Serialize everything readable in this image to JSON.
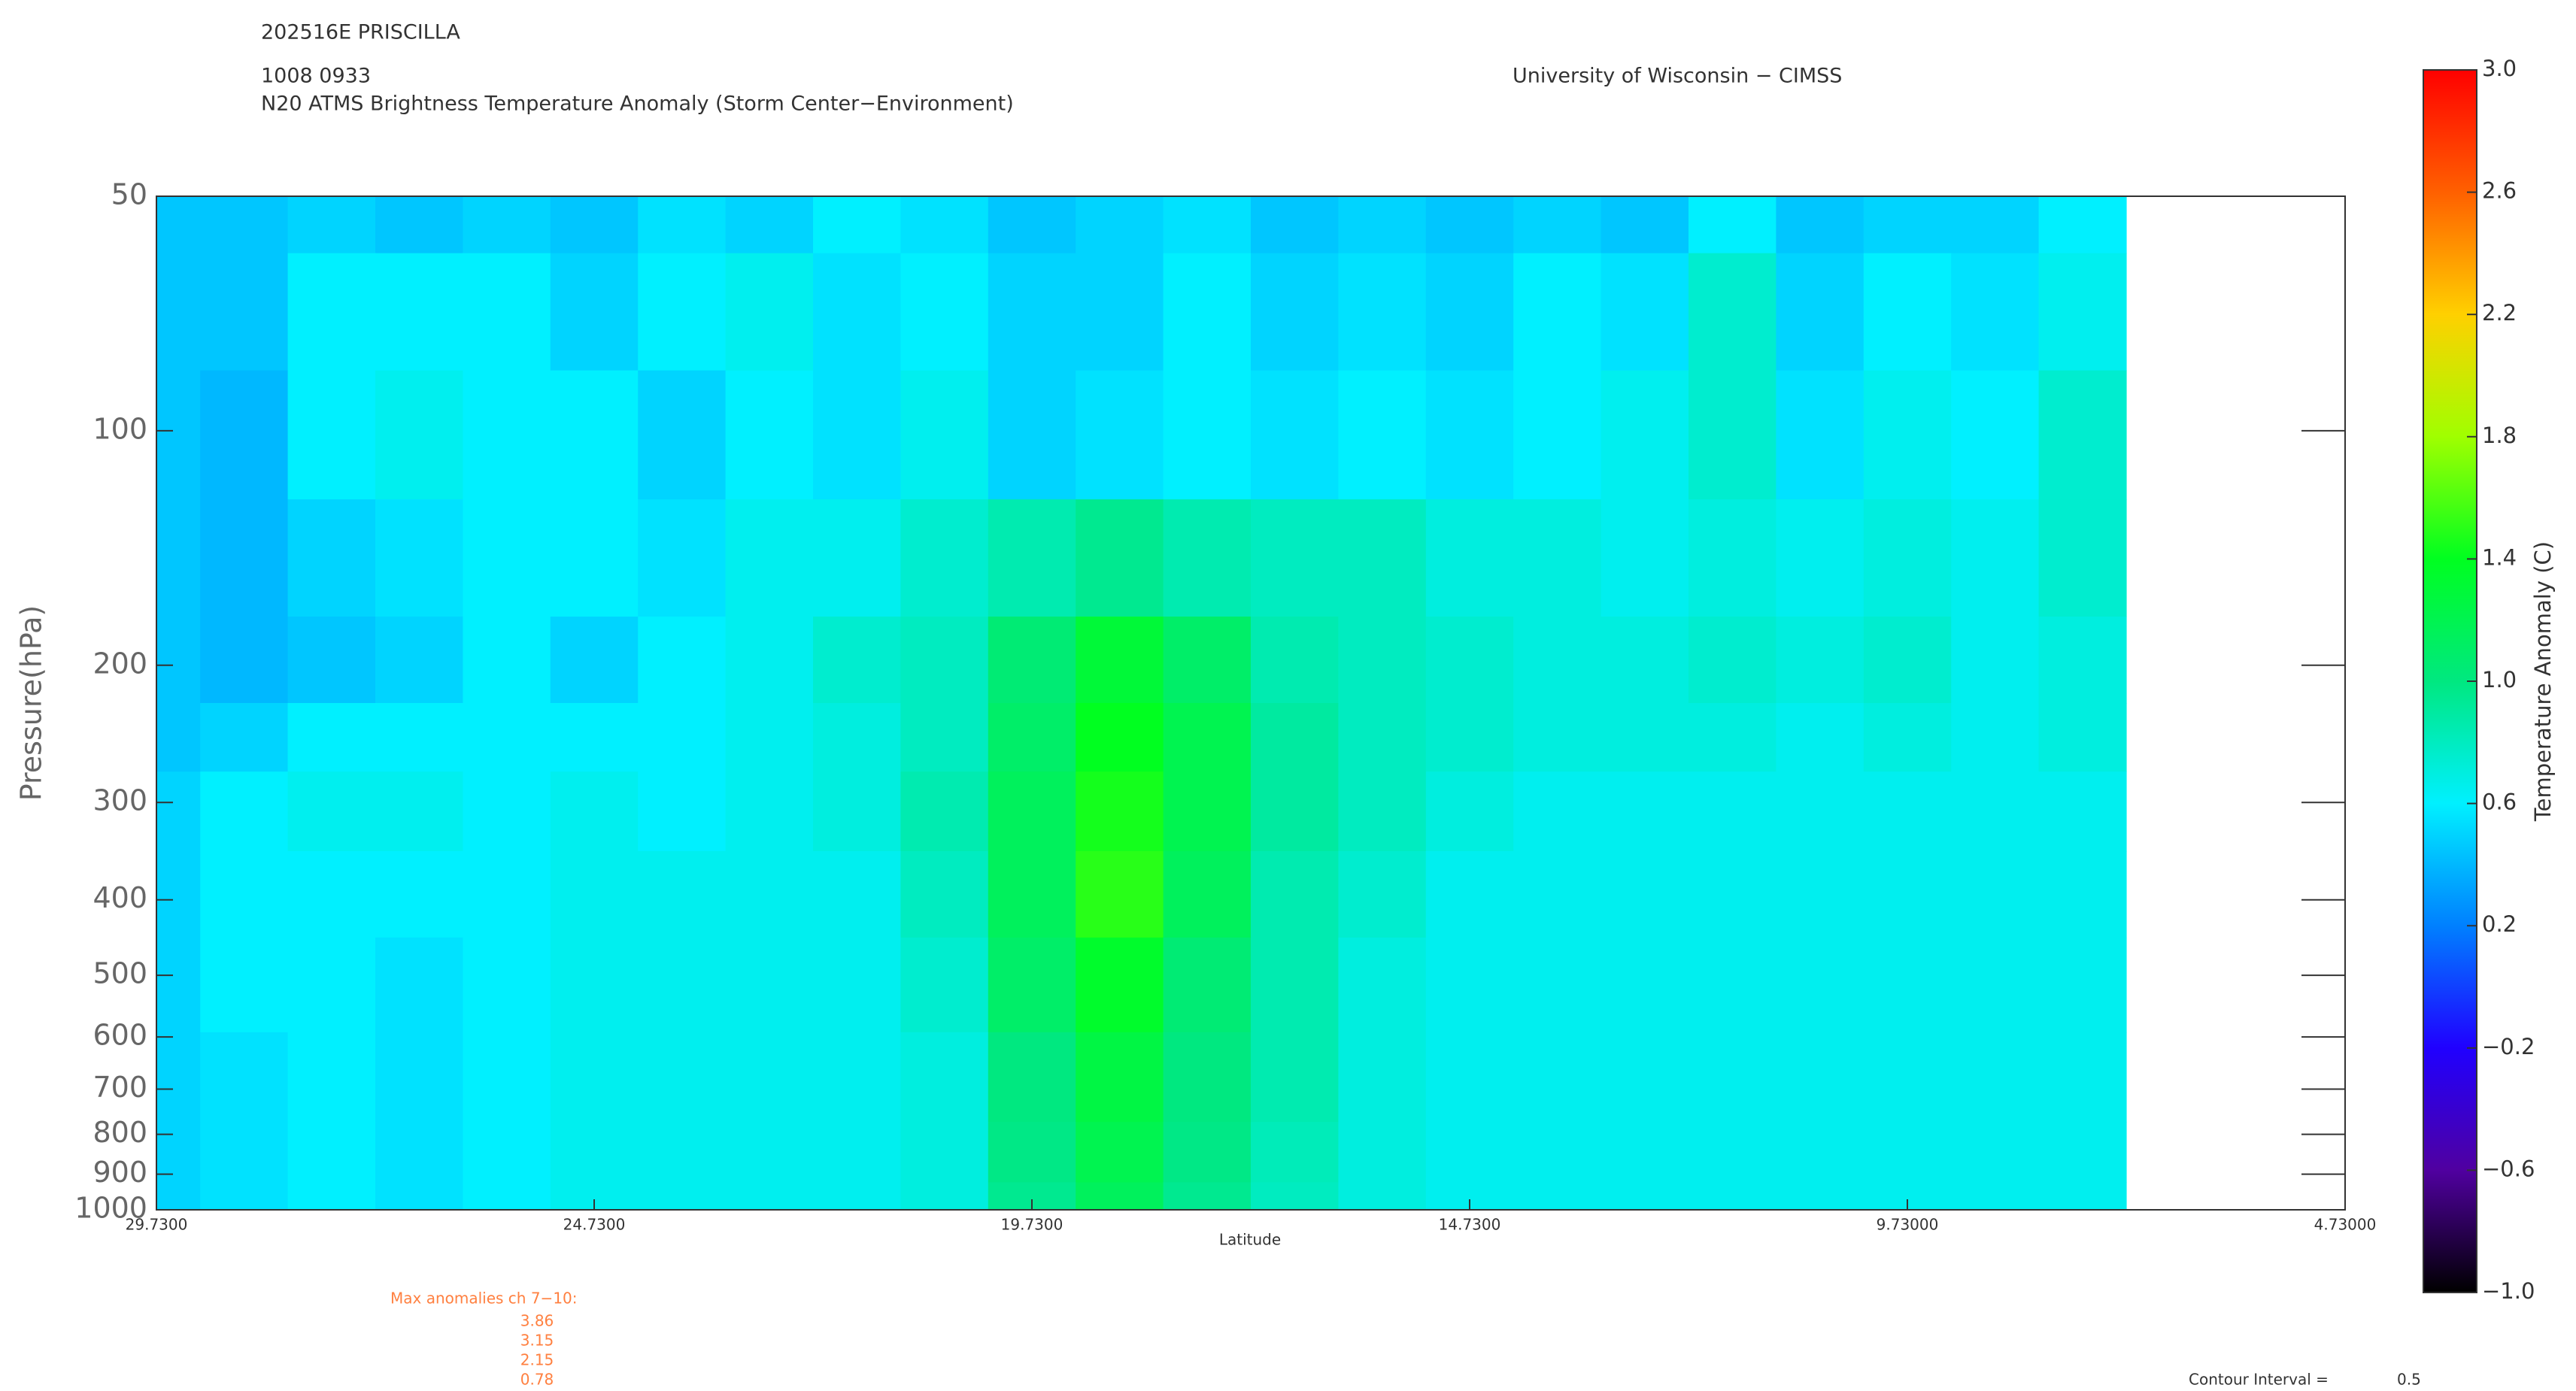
{
  "chart_data": {
    "type": "contour",
    "header": [
      "202516E PRISCILLA",
      "1008 0933",
      "N20 ATMS Brightness Temperature Anomaly (Storm Center−Environment)"
    ],
    "credit": "University of Wisconsin − CIMSS",
    "xlabel": "Latitude",
    "ylabel": "Pressure(hPa)",
    "colorbar_label": "Temperature Anomaly (C)",
    "xlim": [
      29.73,
      4.73
    ],
    "xticks": [
      {
        "value": 29.73,
        "label": "29.7300"
      },
      {
        "value": 24.73,
        "label": "24.7300"
      },
      {
        "value": 19.73,
        "label": "19.7300"
      },
      {
        "value": 14.73,
        "label": "14.7300"
      },
      {
        "value": 9.73,
        "label": "9.73000"
      },
      {
        "value": 4.73,
        "label": "4.73000"
      }
    ],
    "ylim": [
      50,
      1000
    ],
    "yscale": "log",
    "yticks": [
      50,
      100,
      200,
      300,
      400,
      500,
      600,
      700,
      800,
      900,
      1000
    ],
    "colorbar_lim": [
      -1,
      3
    ],
    "colorbar_ticks": [
      {
        "value": -1,
        "label": "−1.0"
      },
      {
        "value": -0.6,
        "label": "−0.6"
      },
      {
        "value": -0.2,
        "label": "−0.2"
      },
      0.2,
      0.6,
      {
        "value": 1,
        "label": "1.0"
      },
      1.4,
      1.8,
      2.2,
      2.6,
      {
        "value": 3,
        "label": "3.0"
      }
    ],
    "colorbar_colors": [
      "#000000",
      "#5000a0",
      "#2000ff",
      "#0080ff",
      "#00f0ff",
      "#00e880",
      "#00ff20",
      "#a0ff00",
      "#ffd000",
      "#ff6000",
      "#ff0000"
    ],
    "x": [
      29.73,
      28.73,
      27.73,
      26.73,
      25.73,
      24.73,
      23.73,
      22.73,
      21.73,
      20.73,
      19.73,
      18.73,
      17.73,
      16.73,
      15.73,
      14.73,
      13.73,
      12.73,
      11.73,
      10.73,
      9.73,
      8.73,
      7.73
    ],
    "levels": [
      50,
      70,
      100,
      150,
      200,
      250,
      300,
      400,
      500,
      700,
      850,
      1000
    ],
    "z": [
      [
        0.45,
        0.45,
        0.5,
        0.45,
        0.5,
        0.45,
        0.55,
        0.5,
        0.6,
        0.55,
        0.45,
        0.5,
        0.55,
        0.45,
        0.5,
        0.45,
        0.5,
        0.45,
        0.6,
        0.45,
        0.5,
        0.5,
        0.6
      ],
      [
        0.45,
        0.45,
        0.6,
        0.6,
        0.6,
        0.5,
        0.6,
        0.65,
        0.55,
        0.6,
        0.5,
        0.5,
        0.6,
        0.5,
        0.55,
        0.5,
        0.6,
        0.55,
        0.75,
        0.5,
        0.6,
        0.55,
        0.65
      ],
      [
        0.45,
        0.4,
        0.6,
        0.65,
        0.6,
        0.6,
        0.5,
        0.6,
        0.55,
        0.65,
        0.5,
        0.55,
        0.6,
        0.55,
        0.6,
        0.55,
        0.6,
        0.65,
        0.75,
        0.55,
        0.65,
        0.6,
        0.75
      ],
      [
        0.45,
        0.4,
        0.5,
        0.55,
        0.6,
        0.6,
        0.55,
        0.65,
        0.65,
        0.75,
        0.85,
        0.95,
        0.85,
        0.8,
        0.8,
        0.7,
        0.7,
        0.65,
        0.7,
        0.65,
        0.7,
        0.65,
        0.75
      ],
      [
        0.45,
        0.4,
        0.45,
        0.5,
        0.6,
        0.5,
        0.6,
        0.65,
        0.75,
        0.8,
        1.05,
        1.3,
        1.1,
        0.85,
        0.8,
        0.75,
        0.7,
        0.7,
        0.75,
        0.7,
        0.75,
        0.65,
        0.7
      ],
      [
        0.45,
        0.5,
        0.6,
        0.6,
        0.6,
        0.6,
        0.6,
        0.65,
        0.7,
        0.8,
        1.1,
        1.4,
        1.2,
        0.9,
        0.8,
        0.75,
        0.7,
        0.7,
        0.7,
        0.65,
        0.7,
        0.65,
        0.7
      ],
      [
        0.5,
        0.6,
        0.65,
        0.65,
        0.6,
        0.65,
        0.6,
        0.65,
        0.7,
        0.85,
        1.15,
        1.45,
        1.2,
        0.9,
        0.8,
        0.7,
        0.65,
        0.65,
        0.65,
        0.65,
        0.65,
        0.65,
        0.65
      ],
      [
        0.5,
        0.6,
        0.6,
        0.6,
        0.6,
        0.65,
        0.65,
        0.65,
        0.65,
        0.8,
        1.15,
        1.5,
        1.15,
        0.85,
        0.75,
        0.65,
        0.65,
        0.65,
        0.65,
        0.65,
        0.65,
        0.65,
        0.65
      ],
      [
        0.5,
        0.6,
        0.6,
        0.55,
        0.6,
        0.65,
        0.65,
        0.65,
        0.65,
        0.75,
        1.1,
        1.35,
        1.05,
        0.85,
        0.7,
        0.65,
        0.65,
        0.65,
        0.65,
        0.65,
        0.65,
        0.65,
        0.65
      ],
      [
        0.5,
        0.55,
        0.6,
        0.55,
        0.6,
        0.65,
        0.65,
        0.65,
        0.65,
        0.7,
        1.0,
        1.25,
        1.0,
        0.85,
        0.7,
        0.65,
        0.65,
        0.65,
        0.65,
        0.65,
        0.65,
        0.65,
        0.65
      ],
      [
        0.5,
        0.55,
        0.6,
        0.55,
        0.6,
        0.65,
        0.65,
        0.65,
        0.65,
        0.7,
        0.98,
        1.2,
        0.98,
        0.82,
        0.7,
        0.65,
        0.65,
        0.65,
        0.65,
        0.65,
        0.65,
        0.65,
        0.65
      ],
      [
        0.5,
        0.55,
        0.6,
        0.55,
        0.6,
        0.65,
        0.65,
        0.65,
        0.65,
        0.7,
        0.95,
        1.15,
        0.95,
        0.8,
        0.7,
        0.65,
        0.65,
        0.65,
        0.65,
        0.65,
        0.65,
        0.65,
        0.65
      ]
    ],
    "max_anomalies_title": "Max anomalies ch 7−10:",
    "max_anomalies": [
      3.86,
      3.15,
      2.15,
      0.78
    ],
    "contour_interval_label": "Contour Interval =",
    "contour_interval": 0.5
  }
}
